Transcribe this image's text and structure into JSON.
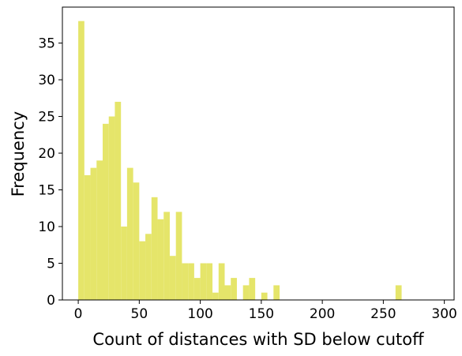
{
  "chart_data": {
    "type": "bar",
    "title": "",
    "xlabel": "Count of distances with SD below cutoff",
    "ylabel": "Frequency",
    "xlim": [
      -13,
      308
    ],
    "ylim": [
      0,
      39.9
    ],
    "xticks": [
      0,
      50,
      100,
      150,
      200,
      250,
      300
    ],
    "yticks": [
      0,
      5,
      10,
      15,
      20,
      25,
      30,
      35
    ],
    "bin_width": 5,
    "color": "#e5e56a",
    "grid": false,
    "bins": [
      {
        "x": 0,
        "value": 38
      },
      {
        "x": 5,
        "value": 17
      },
      {
        "x": 10,
        "value": 18
      },
      {
        "x": 15,
        "value": 19
      },
      {
        "x": 20,
        "value": 24
      },
      {
        "x": 25,
        "value": 25
      },
      {
        "x": 30,
        "value": 27
      },
      {
        "x": 35,
        "value": 10
      },
      {
        "x": 40,
        "value": 18
      },
      {
        "x": 45,
        "value": 16
      },
      {
        "x": 50,
        "value": 8
      },
      {
        "x": 55,
        "value": 9
      },
      {
        "x": 60,
        "value": 14
      },
      {
        "x": 65,
        "value": 11
      },
      {
        "x": 70,
        "value": 12
      },
      {
        "x": 75,
        "value": 6
      },
      {
        "x": 80,
        "value": 12
      },
      {
        "x": 85,
        "value": 5
      },
      {
        "x": 90,
        "value": 5
      },
      {
        "x": 95,
        "value": 3
      },
      {
        "x": 100,
        "value": 5
      },
      {
        "x": 105,
        "value": 5
      },
      {
        "x": 110,
        "value": 1
      },
      {
        "x": 115,
        "value": 5
      },
      {
        "x": 120,
        "value": 2
      },
      {
        "x": 125,
        "value": 3
      },
      {
        "x": 130,
        "value": 0
      },
      {
        "x": 135,
        "value": 2
      },
      {
        "x": 140,
        "value": 3
      },
      {
        "x": 145,
        "value": 0
      },
      {
        "x": 150,
        "value": 1
      },
      {
        "x": 155,
        "value": 0
      },
      {
        "x": 160,
        "value": 2
      },
      {
        "x": 260,
        "value": 2
      }
    ]
  }
}
